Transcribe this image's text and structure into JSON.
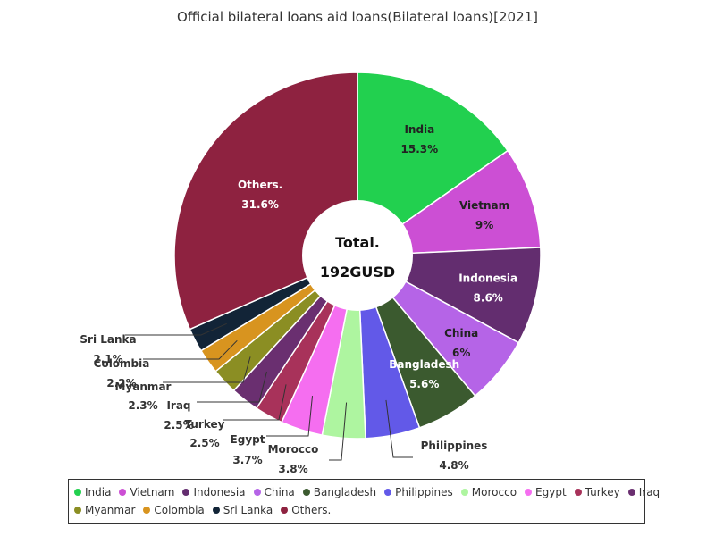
{
  "chart_data": {
    "type": "pie",
    "title": "Official bilateral loans aid loans(Bilateral loans)[2021]",
    "center_label_line1": "Total.",
    "center_label_line2": "192GUSD",
    "slices": [
      {
        "name": "India",
        "value": 15.3,
        "label": "15.3%",
        "color": "#22d04f"
      },
      {
        "name": "Vietnam",
        "value": 9,
        "label": "9%",
        "color": "#cc4fd4"
      },
      {
        "name": "Indonesia",
        "value": 8.6,
        "label": "8.6%",
        "color": "#632d6f"
      },
      {
        "name": "China",
        "value": 6,
        "label": "6%",
        "color": "#b564e7"
      },
      {
        "name": "Bangladesh",
        "value": 5.6,
        "label": "5.6%",
        "color": "#3b5a2f"
      },
      {
        "name": "Philippines",
        "value": 4.8,
        "label": "4.8%",
        "color": "#6259e8"
      },
      {
        "name": "Morocco",
        "value": 3.8,
        "label": "3.8%",
        "color": "#aef5a0"
      },
      {
        "name": "Egypt",
        "value": 3.7,
        "label": "3.7%",
        "color": "#f56ef0"
      },
      {
        "name": "Turkey",
        "value": 2.5,
        "label": "2.5%",
        "color": "#a8325a"
      },
      {
        "name": "Iraq",
        "value": 2.5,
        "label": "2.5%",
        "color": "#6a2f70"
      },
      {
        "name": "Myanmar",
        "value": 2.3,
        "label": "2.3%",
        "color": "#8b8e23"
      },
      {
        "name": "Colombia",
        "value": 2.2,
        "label": "2.2%",
        "color": "#d8941f"
      },
      {
        "name": "Sri Lanka",
        "value": 2.1,
        "label": "2.1%",
        "color": "#122437"
      },
      {
        "name": "Others.",
        "value": 31.6,
        "label": "31.6%",
        "color": "#8e2240"
      }
    ],
    "legend_position": "bottom"
  }
}
